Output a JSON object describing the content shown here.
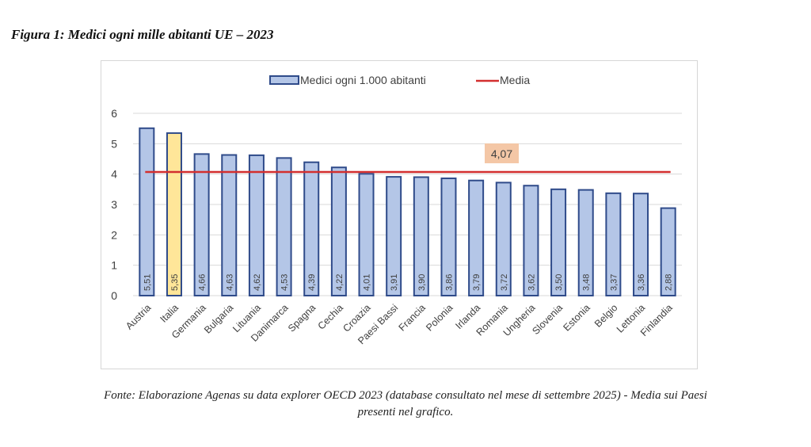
{
  "figure_title": "Figura 1: Medici ogni mille abitanti UE – 2023",
  "source_note": "Fonte: Elaborazione Agenas su data explorer OECD 2023 (database consultato nel mese di settembre 2025) - Media sui Paesi presenti nel grafico.",
  "source_line1": "Fonte: Elaborazione Agenas su data explorer OECD 2023 (database consultato nel mese di settembre 2025) - Media sui Paesi",
  "source_line2": "presenti nel grafico.",
  "colors": {
    "bar_fill": "#b4c6e7",
    "bar_stroke": "#2f4b8a",
    "highlight_fill": "#ffe699",
    "mean_line": "#d32f2f",
    "annotation_bg": "#f4c7a6",
    "grid": "#d9d9d9"
  },
  "chart_data": {
    "type": "bar",
    "title": "",
    "xlabel": "",
    "ylabel": "",
    "ylim": [
      0,
      6
    ],
    "yticks": [
      0,
      1,
      2,
      3,
      4,
      5,
      6
    ],
    "grid": true,
    "legend_position": "top-center",
    "categories": [
      "Austria",
      "Italia",
      "Germania",
      "Bulgaria",
      "Lituania",
      "Danimarca",
      "Spagna",
      "Cechia",
      "Croazia",
      "Paesi Bassi",
      "Francia",
      "Polonia",
      "Irlanda",
      "Romania",
      "Ungheria",
      "Slovenia",
      "Estonia",
      "Belgio",
      "Lettonia",
      "Finlandia"
    ],
    "series": [
      {
        "name": "Medici ogni 1.000 abitanti",
        "type": "bar",
        "values": [
          5.51,
          5.35,
          4.66,
          4.63,
          4.62,
          4.53,
          4.39,
          4.22,
          4.01,
          3.91,
          3.9,
          3.86,
          3.79,
          3.72,
          3.62,
          3.5,
          3.48,
          3.37,
          3.36,
          2.88
        ],
        "value_labels": [
          "5,51",
          "5,35",
          "4,66",
          "4,63",
          "4,62",
          "4,53",
          "4,39",
          "4,22",
          "4,01",
          "3,91",
          "3,90",
          "3,86",
          "3,79",
          "3,72",
          "3,62",
          "3,50",
          "3,48",
          "3,37",
          "3,36",
          "2,88"
        ],
        "highlighted_category": "Italia"
      },
      {
        "name": "Media",
        "type": "line",
        "value": 4.07,
        "label": "4,07"
      }
    ]
  }
}
